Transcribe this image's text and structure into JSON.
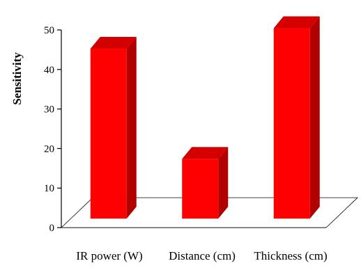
{
  "chart_data": {
    "type": "bar",
    "categories": [
      "IR power (W)",
      "Distance (cm)",
      "Thickness (cm)"
    ],
    "values": [
      45.5,
      16,
      51
    ],
    "ylabel": "Sensitivity",
    "xlabel": "",
    "ylim": [
      0,
      50
    ],
    "yticks": [
      0,
      10,
      20,
      30,
      40,
      50
    ],
    "grid": false,
    "style": "3d-column",
    "colors": {
      "bar_front": "#ff0000",
      "bar_side": "#b00000",
      "bar_top": "#d40000",
      "floor": "#ffffff",
      "axis": "#000000"
    }
  }
}
